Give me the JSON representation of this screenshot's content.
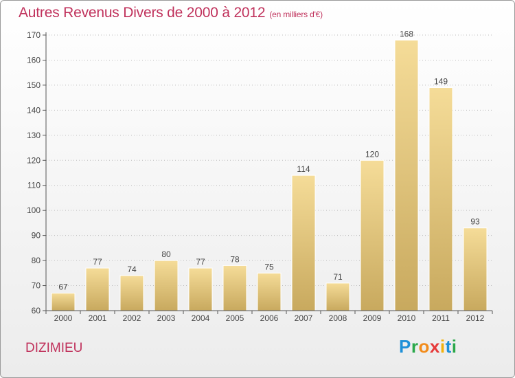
{
  "header": {
    "title": "Autres Revenus Divers de 2000 à 2012",
    "unit": "(en milliers d'€)"
  },
  "commune": "DIZIMIEU",
  "logo": {
    "letters": [
      "P",
      "r",
      "o",
      "x",
      "i",
      "t",
      "i"
    ],
    "colors": [
      "#1e90d8",
      "#2aa84a",
      "#f28c1c",
      "#e63a3a",
      "#f2b10c",
      "#1e90d8",
      "#2aa84a"
    ]
  },
  "chart_data": {
    "type": "bar",
    "title": "Autres Revenus Divers de 2000 à 2012",
    "categories": [
      "2000",
      "2001",
      "2002",
      "2003",
      "2004",
      "2005",
      "2006",
      "2007",
      "2008",
      "2009",
      "2010",
      "2011",
      "2012"
    ],
    "values": [
      67,
      77,
      74,
      80,
      77,
      78,
      75,
      114,
      71,
      120,
      168,
      149,
      93
    ],
    "ylim": [
      60,
      170
    ],
    "yticks": [
      60,
      70,
      80,
      90,
      100,
      110,
      120,
      130,
      140,
      150,
      160,
      170
    ],
    "grid": "horizontal-dotted",
    "bar_color": "#e7cc86",
    "legend": "none"
  }
}
